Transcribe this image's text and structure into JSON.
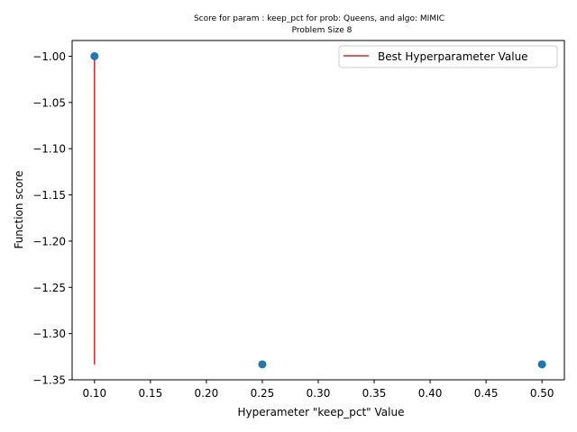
{
  "chart_data": {
    "type": "scatter",
    "title": "Score for param : keep_pct for prob: Queens, and algo: MIMIC",
    "subtitle": "Problem Size 8",
    "xlabel": "Hyperameter \"keep_pct\" Value",
    "ylabel": "Function score",
    "xlim": [
      0.08,
      0.52
    ],
    "ylim": [
      -1.35,
      -0.983
    ],
    "x_ticks": [
      0.1,
      0.15,
      0.2,
      0.25,
      0.3,
      0.35,
      0.4,
      0.45,
      0.5
    ],
    "x_tick_labels": [
      "0.10",
      "0.15",
      "0.20",
      "0.25",
      "0.30",
      "0.35",
      "0.40",
      "0.45",
      "0.50"
    ],
    "y_ticks": [
      -1.0,
      -1.05,
      -1.1,
      -1.15,
      -1.2,
      -1.25,
      -1.3,
      -1.35
    ],
    "y_tick_labels": [
      "−1.00",
      "−1.05",
      "−1.10",
      "−1.15",
      "−1.20",
      "−1.25",
      "−1.30",
      "−1.35"
    ],
    "grid": false,
    "legend_position": "top-right",
    "series": [
      {
        "type": "scatter",
        "color": "#1f77b4",
        "points": [
          {
            "x": 0.1,
            "y": -1.0
          },
          {
            "x": 0.25,
            "y": -1.3333
          },
          {
            "x": 0.5,
            "y": -1.3333
          }
        ]
      },
      {
        "type": "vline",
        "name": "Best Hyperparameter Value",
        "color": "#d62728",
        "x": 0.1,
        "y_range": [
          -1.3333,
          -1.0
        ]
      }
    ]
  }
}
